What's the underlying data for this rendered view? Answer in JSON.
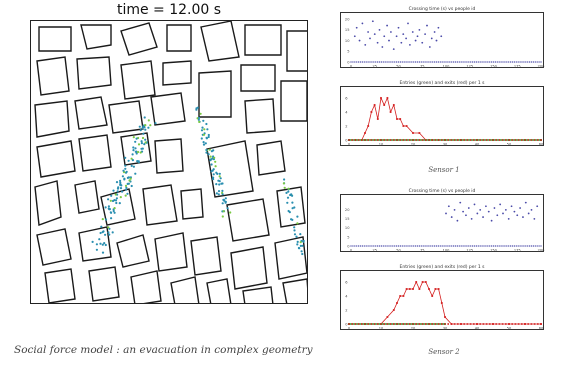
{
  "simulation": {
    "time_label": "time = 12.00 s",
    "caption": "Social force model : an evacuation in complex geometry"
  },
  "sensors": [
    {
      "caption": "Sensor 1",
      "crossing_title": "Crossing time (s) vs people id",
      "entries_title": "Entries (green) and exits (red) per 1 s"
    },
    {
      "caption": "Sensor 2",
      "crossing_title": "Crossing time (s) vs people id",
      "entries_title": "Entries (green) and exits (red) per 1 s"
    }
  ],
  "colors": {
    "crossing_points": "#4a4aa8",
    "entries": "#2e9b2e",
    "exits": "#d42020",
    "pedestrians": "#2a8fb0"
  },
  "chart_data": [
    {
      "type": "scatter",
      "title": "Crossing time (s) vs people id",
      "x_ticks": [
        0,
        25,
        50,
        75,
        100,
        125,
        150,
        175,
        200
      ],
      "y_ticks": [
        0,
        5,
        10,
        15,
        20
      ],
      "xlim": [
        0,
        200
      ],
      "ylim": [
        0,
        21
      ],
      "series": [
        {
          "x": [
            4,
            6,
            9,
            12,
            15,
            18,
            20,
            23,
            25,
            28,
            30,
            33,
            35,
            38,
            40,
            42,
            45,
            48,
            50,
            53,
            55,
            58,
            60,
            62,
            65,
            68,
            70,
            72,
            75,
            78,
            80,
            83,
            85,
            88,
            90,
            92,
            95
          ],
          "y": [
            12,
            16,
            10,
            18,
            8,
            14,
            11,
            19,
            13,
            9,
            15,
            7,
            12,
            17,
            10,
            14,
            6,
            12,
            16,
            9,
            13,
            11,
            18,
            8,
            14,
            10,
            12,
            15,
            9,
            13,
            17,
            7,
            11,
            14,
            10,
            16,
            12
          ]
        }
      ]
    },
    {
      "type": "line",
      "title": "Entries (green) and exits (red) per 1 s",
      "x_ticks": [
        0,
        10,
        20,
        30,
        40,
        50,
        60
      ],
      "y_ticks": [
        0,
        2,
        4,
        6
      ],
      "xlim": [
        0,
        60
      ],
      "ylim": [
        0,
        7
      ],
      "series": [
        {
          "name": "exits",
          "x": [
            0,
            2,
            4,
            5,
            6,
            7,
            8,
            9,
            10,
            11,
            12,
            13,
            14,
            15,
            16,
            17,
            18,
            20,
            22,
            24,
            26,
            28,
            30,
            35,
            40,
            45,
            50,
            55,
            60
          ],
          "y": [
            0,
            0,
            0,
            1,
            2,
            4,
            5,
            3,
            6,
            5,
            6,
            4,
            5,
            3,
            3,
            2,
            2,
            1,
            1,
            0,
            0,
            0,
            0,
            0,
            0,
            0,
            0,
            0,
            0
          ]
        },
        {
          "name": "entries",
          "x": [
            0,
            5,
            10,
            15,
            20,
            25,
            30,
            35,
            40,
            45,
            50,
            55,
            60
          ],
          "y": [
            0,
            0,
            0,
            0,
            0,
            0,
            0,
            0,
            0,
            0,
            0,
            0,
            0
          ]
        }
      ]
    },
    {
      "type": "scatter",
      "title": "Crossing time (s) vs people id",
      "x_ticks": [
        0,
        25,
        50,
        75,
        100,
        125,
        150,
        175,
        200
      ],
      "y_ticks": [
        0,
        5,
        10,
        15,
        20
      ],
      "xlim": [
        0,
        200
      ],
      "ylim": [
        0,
        26
      ],
      "series": [
        {
          "x": [
            100,
            103,
            106,
            109,
            112,
            115,
            118,
            121,
            124,
            127,
            130,
            133,
            136,
            139,
            142,
            145,
            148,
            151,
            154,
            157,
            160,
            163,
            166,
            169,
            172,
            175,
            178,
            181,
            184,
            187,
            190,
            193,
            196
          ],
          "y": [
            18,
            22,
            16,
            20,
            14,
            24,
            19,
            17,
            21,
            15,
            23,
            18,
            20,
            16,
            22,
            19,
            14,
            21,
            17,
            23,
            18,
            20,
            15,
            22,
            19,
            17,
            21,
            16,
            24,
            18,
            20,
            15,
            22
          ]
        }
      ]
    },
    {
      "type": "line",
      "title": "Entries (green) and exits (red) per 1 s",
      "x_ticks": [
        0,
        10,
        20,
        30,
        40,
        50,
        60
      ],
      "y_ticks": [
        0,
        2,
        4,
        6
      ],
      "xlim": [
        0,
        60
      ],
      "ylim": [
        0,
        7
      ],
      "series": [
        {
          "name": "exits",
          "x": [
            0,
            5,
            10,
            12,
            14,
            15,
            16,
            17,
            18,
            19,
            20,
            21,
            22,
            23,
            24,
            25,
            26,
            27,
            28,
            29,
            30,
            32,
            35,
            40,
            45,
            50,
            55,
            60
          ],
          "y": [
            0,
            0,
            0,
            1,
            2,
            3,
            4,
            4,
            5,
            5,
            5,
            6,
            5,
            6,
            6,
            5,
            4,
            5,
            5,
            3,
            1,
            0,
            0,
            0,
            0,
            0,
            0,
            0
          ]
        },
        {
          "name": "entries",
          "x": [
            0,
            5,
            10,
            15,
            20,
            25,
            30
          ],
          "y": [
            0,
            0,
            0,
            0,
            0,
            0,
            0
          ]
        }
      ]
    }
  ]
}
